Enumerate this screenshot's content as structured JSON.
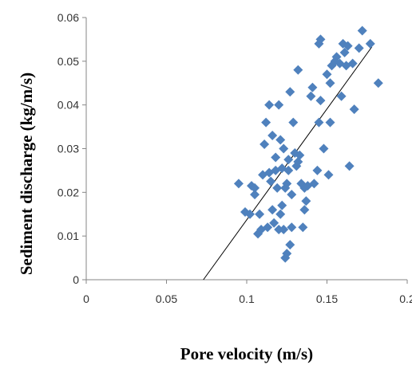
{
  "chart_data": {
    "type": "scatter",
    "xlabel": "Pore velocity (m/s)",
    "ylabel": "Sediment discharge (kg/m/s)",
    "xlim": [
      0,
      0.2
    ],
    "ylim": [
      0,
      0.06
    ],
    "x_ticks": [
      "0",
      "0.05",
      "0.1",
      "0.15",
      "0.2"
    ],
    "y_ticks": [
      "0",
      "0.01",
      "0.02",
      "0.03",
      "0.04",
      "0.05",
      "0.06"
    ],
    "grid": false,
    "legend": "none",
    "marker": "diamond",
    "marker_color": "#4f81bd",
    "series": [
      {
        "points": [
          [
            0.095,
            0.022
          ],
          [
            0.099,
            0.0155
          ],
          [
            0.102,
            0.015
          ],
          [
            0.103,
            0.0215
          ],
          [
            0.105,
            0.0195
          ],
          [
            0.105,
            0.021
          ],
          [
            0.107,
            0.0105
          ],
          [
            0.108,
            0.015
          ],
          [
            0.109,
            0.0115
          ],
          [
            0.11,
            0.024
          ],
          [
            0.111,
            0.031
          ],
          [
            0.112,
            0.036
          ],
          [
            0.113,
            0.012
          ],
          [
            0.114,
            0.0245
          ],
          [
            0.114,
            0.04
          ],
          [
            0.115,
            0.0225
          ],
          [
            0.116,
            0.016
          ],
          [
            0.116,
            0.033
          ],
          [
            0.117,
            0.013
          ],
          [
            0.118,
            0.025
          ],
          [
            0.118,
            0.028
          ],
          [
            0.119,
            0.021
          ],
          [
            0.12,
            0.0115
          ],
          [
            0.12,
            0.04
          ],
          [
            0.121,
            0.015
          ],
          [
            0.121,
            0.032
          ],
          [
            0.122,
            0.0255
          ],
          [
            0.122,
            0.017
          ],
          [
            0.123,
            0.03
          ],
          [
            0.123,
            0.0115
          ],
          [
            0.124,
            0.005
          ],
          [
            0.124,
            0.021
          ],
          [
            0.125,
            0.006
          ],
          [
            0.125,
            0.022
          ],
          [
            0.126,
            0.025
          ],
          [
            0.126,
            0.0275
          ],
          [
            0.127,
            0.008
          ],
          [
            0.127,
            0.043
          ],
          [
            0.128,
            0.012
          ],
          [
            0.128,
            0.0195
          ],
          [
            0.129,
            0.036
          ],
          [
            0.13,
            0.029
          ],
          [
            0.131,
            0.026
          ],
          [
            0.132,
            0.027
          ],
          [
            0.132,
            0.048
          ],
          [
            0.133,
            0.0285
          ],
          [
            0.134,
            0.022
          ],
          [
            0.135,
            0.012
          ],
          [
            0.136,
            0.021
          ],
          [
            0.136,
            0.016
          ],
          [
            0.137,
            0.018
          ],
          [
            0.138,
            0.0215
          ],
          [
            0.14,
            0.042
          ],
          [
            0.141,
            0.044
          ],
          [
            0.142,
            0.022
          ],
          [
            0.144,
            0.025
          ],
          [
            0.145,
            0.036
          ],
          [
            0.145,
            0.054
          ],
          [
            0.146,
            0.055
          ],
          [
            0.146,
            0.041
          ],
          [
            0.148,
            0.03
          ],
          [
            0.15,
            0.047
          ],
          [
            0.151,
            0.024
          ],
          [
            0.152,
            0.036
          ],
          [
            0.152,
            0.045
          ],
          [
            0.153,
            0.049
          ],
          [
            0.155,
            0.05
          ],
          [
            0.156,
            0.051
          ],
          [
            0.158,
            0.0495
          ],
          [
            0.159,
            0.042
          ],
          [
            0.16,
            0.054
          ],
          [
            0.161,
            0.052
          ],
          [
            0.162,
            0.049
          ],
          [
            0.163,
            0.0535
          ],
          [
            0.164,
            0.026
          ],
          [
            0.166,
            0.0495
          ],
          [
            0.167,
            0.039
          ],
          [
            0.17,
            0.053
          ],
          [
            0.172,
            0.057
          ],
          [
            0.177,
            0.054
          ],
          [
            0.182,
            0.045
          ]
        ]
      }
    ],
    "trendline": {
      "x": [
        0.073,
        0.178
      ],
      "y": [
        0,
        0.0533
      ]
    }
  }
}
